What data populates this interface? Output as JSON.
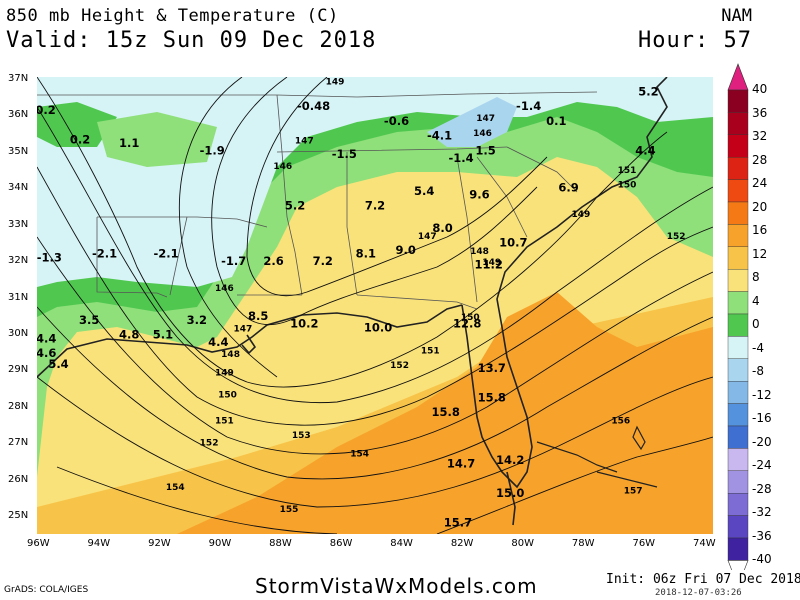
{
  "header": {
    "title": "850 mb Height & Temperature (C)",
    "valid": "Valid: 15z Sun 09 Dec 2018",
    "model": "NAM",
    "hour": "Hour: 57"
  },
  "footer": {
    "credit": "GrADS: COLA/IGES",
    "site": "StormVistaWxModels.com",
    "init": "Init: 06z Fri 07 Dec 2018",
    "stamp": "2018-12-07-03:26"
  },
  "axes": {
    "lon_ticks": [
      "96W",
      "94W",
      "92W",
      "90W",
      "88W",
      "86W",
      "84W",
      "82W",
      "80W",
      "78W",
      "76W",
      "74W"
    ],
    "lat_ticks": [
      "37N",
      "36N",
      "35N",
      "34N",
      "33N",
      "32N",
      "31N",
      "30N",
      "29N",
      "28N",
      "27N",
      "26N",
      "25N"
    ]
  },
  "colorbar": {
    "labels": [
      "40",
      "36",
      "32",
      "28",
      "24",
      "20",
      "16",
      "12",
      "8",
      "4",
      "0",
      "-4",
      "-8",
      "-12",
      "-16",
      "-20",
      "-24",
      "-28",
      "-32",
      "-36",
      "-40"
    ],
    "colors": [
      "#8b0021",
      "#a8001d",
      "#c40018",
      "#dd2314",
      "#ee4a12",
      "#f57a16",
      "#f7a22b",
      "#f7c348",
      "#f9e27a",
      "#8fe07a",
      "#50c850",
      "#d6f3f6",
      "#aad5ee",
      "#84b8e6",
      "#5592dd",
      "#3f6fd1",
      "#c8b8ef",
      "#a192e2",
      "#7c6cd4",
      "#5a46c0",
      "#3f229f"
    ],
    "top_color": "#e0207e"
  },
  "map": {
    "temp_labels": [
      {
        "t": "-0.2",
        "lon": -95.8,
        "lat": 36.1
      },
      {
        "t": "0.2",
        "lon": -94.6,
        "lat": 35.3
      },
      {
        "t": "1.1",
        "lon": -93.0,
        "lat": 35.2
      },
      {
        "t": "-1.9",
        "lon": -90.3,
        "lat": 35.0
      },
      {
        "t": "-0.48",
        "lon": -87.0,
        "lat": 36.2
      },
      {
        "t": "-0.6",
        "lon": -84.3,
        "lat": 35.8
      },
      {
        "t": "-1.4",
        "lon": -80.0,
        "lat": 36.2
      },
      {
        "t": "0.1",
        "lon": -79.1,
        "lat": 35.8
      },
      {
        "t": "-4.1",
        "lon": -82.9,
        "lat": 35.4
      },
      {
        "t": "1.5",
        "lon": -81.4,
        "lat": 35.0
      },
      {
        "t": "-1.5",
        "lon": -86.0,
        "lat": 34.9
      },
      {
        "t": "-1.4",
        "lon": -82.2,
        "lat": 34.8
      },
      {
        "t": "6.9",
        "lon": -78.7,
        "lat": 34.0
      },
      {
        "t": "5.4",
        "lon": -83.4,
        "lat": 33.9
      },
      {
        "t": "9.6",
        "lon": -81.6,
        "lat": 33.8
      },
      {
        "t": "5.2",
        "lon": -87.6,
        "lat": 33.5
      },
      {
        "t": "7.2",
        "lon": -85.0,
        "lat": 33.5
      },
      {
        "t": "8.0",
        "lon": -82.8,
        "lat": 32.9
      },
      {
        "t": "10.7",
        "lon": -80.5,
        "lat": 32.5
      },
      {
        "t": "-1.3",
        "lon": -95.6,
        "lat": 32.1
      },
      {
        "t": "-2.1",
        "lon": -93.8,
        "lat": 32.2
      },
      {
        "t": "-2.1",
        "lon": -91.8,
        "lat": 32.2
      },
      {
        "t": "-1.7",
        "lon": -89.6,
        "lat": 32.0
      },
      {
        "t": "2.6",
        "lon": -88.3,
        "lat": 32.0
      },
      {
        "t": "7.2",
        "lon": -86.7,
        "lat": 32.0
      },
      {
        "t": "8.1",
        "lon": -85.3,
        "lat": 32.2
      },
      {
        "t": "9.0",
        "lon": -84.0,
        "lat": 32.3
      },
      {
        "t": "11.2",
        "lon": -81.3,
        "lat": 31.9
      },
      {
        "t": "3.5",
        "lon": -94.3,
        "lat": 30.4
      },
      {
        "t": "4.8",
        "lon": -93.0,
        "lat": 30.0
      },
      {
        "t": "5.1",
        "lon": -91.9,
        "lat": 30.0
      },
      {
        "t": "3.2",
        "lon": -90.8,
        "lat": 30.4
      },
      {
        "t": "8.5",
        "lon": -88.8,
        "lat": 30.5
      },
      {
        "t": "10.2",
        "lon": -87.3,
        "lat": 30.3
      },
      {
        "t": "10.0",
        "lon": -84.9,
        "lat": 30.2
      },
      {
        "t": "12.8",
        "lon": -82.0,
        "lat": 30.3
      },
      {
        "t": "4.4",
        "lon": -95.7,
        "lat": 29.9
      },
      {
        "t": "4.6",
        "lon": -95.7,
        "lat": 29.5
      },
      {
        "t": "5.4",
        "lon": -95.3,
        "lat": 29.2
      },
      {
        "t": "4.4",
        "lon": -90.1,
        "lat": 29.8
      },
      {
        "t": "13.7",
        "lon": -81.2,
        "lat": 29.1
      },
      {
        "t": "15.8",
        "lon": -81.2,
        "lat": 28.3
      },
      {
        "t": "15.8",
        "lon": -82.7,
        "lat": 27.9
      },
      {
        "t": "14.7",
        "lon": -82.2,
        "lat": 26.5
      },
      {
        "t": "14.2",
        "lon": -80.6,
        "lat": 26.6
      },
      {
        "t": "15.0",
        "lon": -80.6,
        "lat": 25.7
      },
      {
        "t": "15.7",
        "lon": -82.3,
        "lat": 24.9
      },
      {
        "t": "5.2",
        "lon": -76.1,
        "lat": 36.6
      },
      {
        "t": "4.4",
        "lon": -76.2,
        "lat": 35.0
      }
    ],
    "height_labels": [
      {
        "t": "149",
        "lon": -86.3,
        "lat": 36.9
      },
      {
        "t": "147",
        "lon": -87.3,
        "lat": 35.3
      },
      {
        "t": "146",
        "lon": -88.0,
        "lat": 34.6
      },
      {
        "t": "146",
        "lon": -81.5,
        "lat": 35.5
      },
      {
        "t": "147",
        "lon": -81.4,
        "lat": 35.9
      },
      {
        "t": "151",
        "lon": -76.8,
        "lat": 34.5
      },
      {
        "t": "150",
        "lon": -76.8,
        "lat": 34.1
      },
      {
        "t": "149",
        "lon": -78.3,
        "lat": 33.3
      },
      {
        "t": "147",
        "lon": -83.3,
        "lat": 32.7
      },
      {
        "t": "148",
        "lon": -81.6,
        "lat": 32.3
      },
      {
        "t": "149",
        "lon": -81.2,
        "lat": 32.0
      },
      {
        "t": "152",
        "lon": -75.2,
        "lat": 32.7
      },
      {
        "t": "146",
        "lon": -89.9,
        "lat": 31.3
      },
      {
        "t": "147",
        "lon": -89.3,
        "lat": 30.2
      },
      {
        "t": "148",
        "lon": -89.7,
        "lat": 29.5
      },
      {
        "t": "149",
        "lon": -89.9,
        "lat": 29.0
      },
      {
        "t": "150",
        "lon": -89.8,
        "lat": 28.4
      },
      {
        "t": "151",
        "lon": -89.9,
        "lat": 27.7
      },
      {
        "t": "152",
        "lon": -90.4,
        "lat": 27.1
      },
      {
        "t": "153",
        "lon": -87.4,
        "lat": 27.3
      },
      {
        "t": "154",
        "lon": -85.5,
        "lat": 26.8
      },
      {
        "t": "154",
        "lon": -91.5,
        "lat": 25.9
      },
      {
        "t": "155",
        "lon": -87.8,
        "lat": 25.3
      },
      {
        "t": "150",
        "lon": -81.9,
        "lat": 30.5
      },
      {
        "t": "151",
        "lon": -83.2,
        "lat": 29.6
      },
      {
        "t": "152",
        "lon": -84.2,
        "lat": 29.2
      },
      {
        "t": "156",
        "lon": -77.0,
        "lat": 27.7
      },
      {
        "t": "157",
        "lon": -76.6,
        "lat": 25.8
      }
    ]
  }
}
